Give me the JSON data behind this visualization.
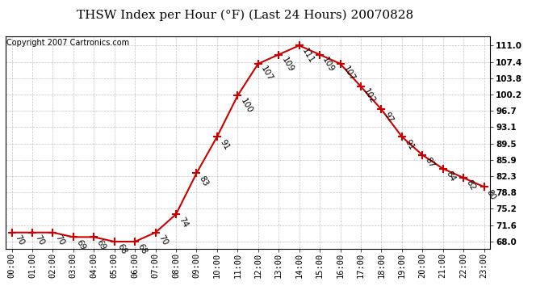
{
  "title": "THSW Index per Hour (°F) (Last 24 Hours) 20070828",
  "copyright": "Copyright 2007 Cartronics.com",
  "hours": [
    0,
    1,
    2,
    3,
    4,
    5,
    6,
    7,
    8,
    9,
    10,
    11,
    12,
    13,
    14,
    15,
    16,
    17,
    18,
    19,
    20,
    21,
    22,
    23
  ],
  "values": [
    70,
    70,
    70,
    69,
    69,
    68,
    68,
    70,
    74,
    83,
    91,
    100,
    107,
    109,
    111,
    109,
    107,
    102,
    97,
    91,
    87,
    84,
    82,
    80
  ],
  "x_labels": [
    "00:00",
    "01:00",
    "02:00",
    "03:00",
    "04:00",
    "05:00",
    "06:00",
    "07:00",
    "08:00",
    "09:00",
    "10:00",
    "11:00",
    "12:00",
    "13:00",
    "14:00",
    "15:00",
    "16:00",
    "17:00",
    "18:00",
    "19:00",
    "20:00",
    "21:00",
    "22:00",
    "23:00"
  ],
  "y_ticks": [
    68.0,
    71.6,
    75.2,
    78.8,
    82.3,
    85.9,
    89.5,
    93.1,
    96.7,
    100.2,
    103.8,
    107.4,
    111.0
  ],
  "line_color": "#cc0000",
  "marker_color": "#cc0000",
  "bg_color": "#ffffff",
  "grid_color": "#bbbbbb",
  "ylim": [
    66.5,
    113.0
  ],
  "xlim": [
    -0.3,
    23.3
  ],
  "label_rotation": -60,
  "label_fontsize": 7.5,
  "tick_fontsize": 7.5,
  "title_fontsize": 11,
  "copyright_fontsize": 7
}
